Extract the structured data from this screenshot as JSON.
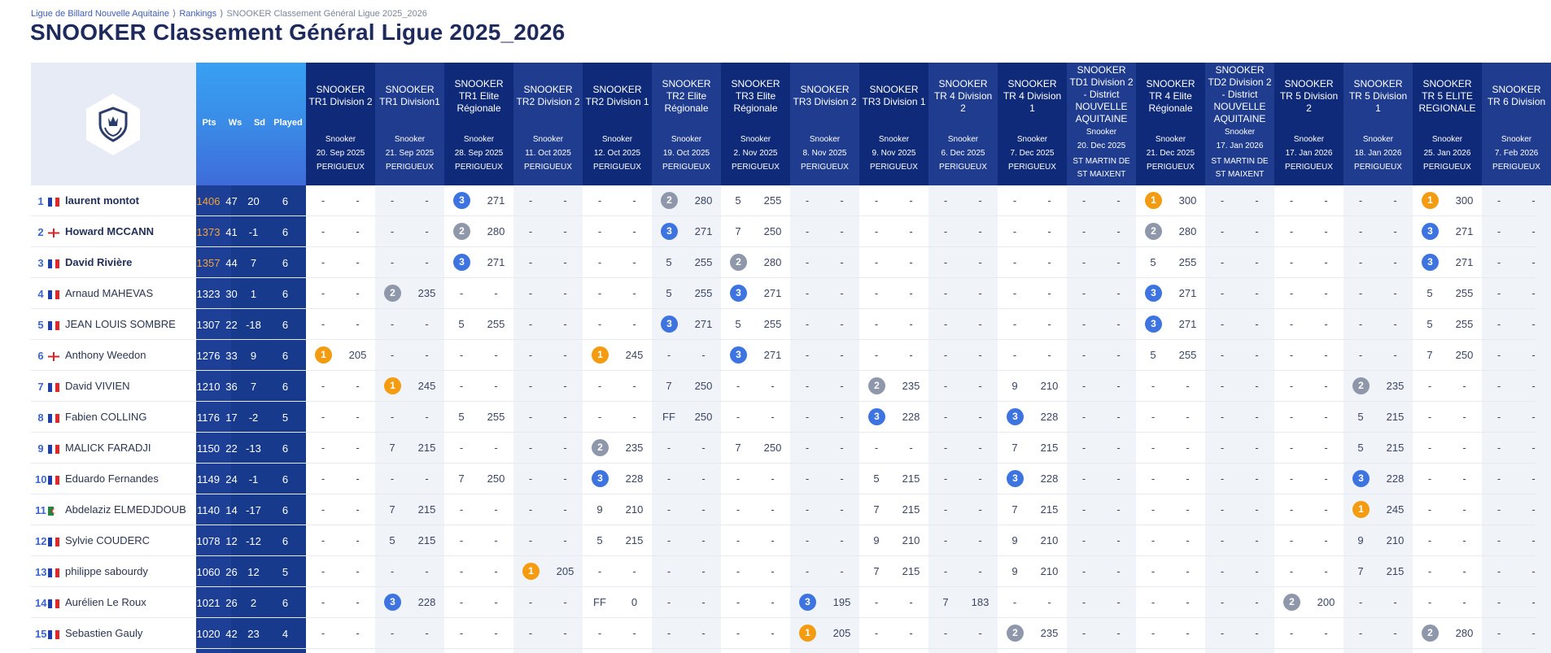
{
  "breadcrumb": {
    "items": [
      "Ligue de Billard Nouvelle Aquitaine",
      "Rankings",
      "SNOOKER Classement Général Ligue 2025_2026"
    ]
  },
  "page_title": "SNOOKER Classement Général Ligue 2025_2026",
  "columns": {
    "pts": "Pts",
    "ws": "Ws",
    "sd": "Sd",
    "played": "Played"
  },
  "colors": {
    "header_dark": "#0f2a78",
    "header_light": "#1f3c8f",
    "shade": "#f0f3f8",
    "rank_gold": "#f39c12",
    "rank_silver": "#8f97aa",
    "rank_bronze": "#3e74e0",
    "accent_blue": "#3b64d4"
  },
  "competitions": [
    {
      "name": "SNOOKER TR1 Division 2",
      "type": "Snooker",
      "date": "20. Sep 2025",
      "place": "PERIGUEUX"
    },
    {
      "name": "SNOOKER TR1 Division1",
      "type": "Snooker",
      "date": "21. Sep 2025",
      "place": "PERIGUEUX"
    },
    {
      "name": "SNOOKER TR1 Elite Régionale",
      "type": "Snooker",
      "date": "28. Sep 2025",
      "place": "PERIGUEUX"
    },
    {
      "name": "SNOOKER TR2 Division 2",
      "type": "Snooker",
      "date": "11. Oct 2025",
      "place": "PERIGUEUX"
    },
    {
      "name": "SNOOKER TR2 Division 1",
      "type": "Snooker",
      "date": "12. Oct 2025",
      "place": "PERIGUEUX"
    },
    {
      "name": "SNOOKER TR2 Elite Régionale",
      "type": "Snooker",
      "date": "19. Oct 2025",
      "place": "PERIGUEUX"
    },
    {
      "name": "SNOOKER TR3 Elite Régionale",
      "type": "Snooker",
      "date": "2. Nov 2025",
      "place": "PERIGUEUX"
    },
    {
      "name": "SNOOKER TR3 Division 2",
      "type": "Snooker",
      "date": "8. Nov 2025",
      "place": "PERIGUEUX"
    },
    {
      "name": "SNOOKER TR3 Division 1",
      "type": "Snooker",
      "date": "9. Nov 2025",
      "place": "PERIGUEUX"
    },
    {
      "name": "SNOOKER TR 4 Division 2",
      "type": "Snooker",
      "date": "6. Dec 2025",
      "place": "PERIGUEUX"
    },
    {
      "name": "SNOOKER TR 4 Division 1",
      "type": "Snooker",
      "date": "7. Dec 2025",
      "place": "PERIGUEUX"
    },
    {
      "name": "SNOOKER TD1 Division 2 - District NOUVELLE AQUITAINE",
      "type": "Snooker",
      "date": "20. Dec 2025",
      "place": "ST MARTIN DE ST MAIXENT"
    },
    {
      "name": "SNOOKER TR 4 Elite Régionale",
      "type": "Snooker",
      "date": "21. Dec 2025",
      "place": "PERIGUEUX"
    },
    {
      "name": "SNOOKER TD2 Division 2 - District NOUVELLE AQUITAINE",
      "type": "Snooker",
      "date": "17. Jan 2026",
      "place": "ST MARTIN DE ST MAIXENT"
    },
    {
      "name": "SNOOKER TR 5 Division 2",
      "type": "Snooker",
      "date": "17. Jan 2026",
      "place": "PERIGUEUX"
    },
    {
      "name": "SNOOKER TR 5 Division 1",
      "type": "Snooker",
      "date": "18. Jan 2026",
      "place": "PERIGUEUX"
    },
    {
      "name": "SNOOKER TR 5 ELITE REGIONALE",
      "type": "Snooker",
      "date": "25. Jan 2026",
      "place": "PERIGUEUX"
    },
    {
      "name": "SNOOKER TR 6 Division",
      "type": "Snooker",
      "date": "7. Feb 2026",
      "place": "PERIGUEUX"
    }
  ],
  "players": [
    {
      "rank": "1",
      "flag": "fr",
      "name": "laurent montot",
      "pts": "1406",
      "ws": "47",
      "sd": "20",
      "played": "6",
      "results": [
        [
          "-",
          "-"
        ],
        [
          "-",
          "-"
        ],
        [
          "3",
          "271"
        ],
        [
          "-",
          "-"
        ],
        [
          "-",
          "-"
        ],
        [
          "2",
          "280"
        ],
        [
          "5",
          "255"
        ],
        [
          "-",
          "-"
        ],
        [
          "-",
          "-"
        ],
        [
          "-",
          "-"
        ],
        [
          "-",
          "-"
        ],
        [
          "-",
          "-"
        ],
        [
          "1",
          "300"
        ],
        [
          "-",
          "-"
        ],
        [
          "-",
          "-"
        ],
        [
          "-",
          "-"
        ],
        [
          "1",
          "300"
        ],
        [
          "-",
          "-"
        ]
      ]
    },
    {
      "rank": "2",
      "flag": "en",
      "name": "Howard MCCANN",
      "pts": "1373",
      "ws": "41",
      "sd": "-1",
      "played": "6",
      "results": [
        [
          "-",
          "-"
        ],
        [
          "-",
          "-"
        ],
        [
          "2",
          "280"
        ],
        [
          "-",
          "-"
        ],
        [
          "-",
          "-"
        ],
        [
          "3",
          "271"
        ],
        [
          "7",
          "250"
        ],
        [
          "-",
          "-"
        ],
        [
          "-",
          "-"
        ],
        [
          "-",
          "-"
        ],
        [
          "-",
          "-"
        ],
        [
          "-",
          "-"
        ],
        [
          "2",
          "280"
        ],
        [
          "-",
          "-"
        ],
        [
          "-",
          "-"
        ],
        [
          "-",
          "-"
        ],
        [
          "3",
          "271"
        ],
        [
          "-",
          "-"
        ]
      ]
    },
    {
      "rank": "3",
      "flag": "fr",
      "name": "David Rivière",
      "pts": "1357",
      "ws": "44",
      "sd": "7",
      "played": "6",
      "results": [
        [
          "-",
          "-"
        ],
        [
          "-",
          "-"
        ],
        [
          "3",
          "271"
        ],
        [
          "-",
          "-"
        ],
        [
          "-",
          "-"
        ],
        [
          "5",
          "255"
        ],
        [
          "2",
          "280"
        ],
        [
          "-",
          "-"
        ],
        [
          "-",
          "-"
        ],
        [
          "-",
          "-"
        ],
        [
          "-",
          "-"
        ],
        [
          "-",
          "-"
        ],
        [
          "5",
          "255"
        ],
        [
          "-",
          "-"
        ],
        [
          "-",
          "-"
        ],
        [
          "-",
          "-"
        ],
        [
          "3",
          "271"
        ],
        [
          "-",
          "-"
        ]
      ]
    },
    {
      "rank": "4",
      "flag": "fr",
      "name": "Arnaud MAHEVAS",
      "pts": "1323",
      "ws": "30",
      "sd": "1",
      "played": "6",
      "results": [
        [
          "-",
          "-"
        ],
        [
          "2",
          "235"
        ],
        [
          "-",
          "-"
        ],
        [
          "-",
          "-"
        ],
        [
          "-",
          "-"
        ],
        [
          "5",
          "255"
        ],
        [
          "3",
          "271"
        ],
        [
          "-",
          "-"
        ],
        [
          "-",
          "-"
        ],
        [
          "-",
          "-"
        ],
        [
          "-",
          "-"
        ],
        [
          "-",
          "-"
        ],
        [
          "3",
          "271"
        ],
        [
          "-",
          "-"
        ],
        [
          "-",
          "-"
        ],
        [
          "-",
          "-"
        ],
        [
          "5",
          "255"
        ],
        [
          "-",
          "-"
        ]
      ]
    },
    {
      "rank": "5",
      "flag": "fr",
      "name": "JEAN LOUIS SOMBRE",
      "pts": "1307",
      "ws": "22",
      "sd": "-18",
      "played": "6",
      "results": [
        [
          "-",
          "-"
        ],
        [
          "-",
          "-"
        ],
        [
          "5",
          "255"
        ],
        [
          "-",
          "-"
        ],
        [
          "-",
          "-"
        ],
        [
          "3",
          "271"
        ],
        [
          "5",
          "255"
        ],
        [
          "-",
          "-"
        ],
        [
          "-",
          "-"
        ],
        [
          "-",
          "-"
        ],
        [
          "-",
          "-"
        ],
        [
          "-",
          "-"
        ],
        [
          "3",
          "271"
        ],
        [
          "-",
          "-"
        ],
        [
          "-",
          "-"
        ],
        [
          "-",
          "-"
        ],
        [
          "5",
          "255"
        ],
        [
          "-",
          "-"
        ]
      ]
    },
    {
      "rank": "6",
      "flag": "en",
      "name": "Anthony Weedon",
      "pts": "1276",
      "ws": "33",
      "sd": "9",
      "played": "6",
      "results": [
        [
          "1",
          "205"
        ],
        [
          "-",
          "-"
        ],
        [
          "-",
          "-"
        ],
        [
          "-",
          "-"
        ],
        [
          "1",
          "245"
        ],
        [
          "-",
          "-"
        ],
        [
          "3",
          "271"
        ],
        [
          "-",
          "-"
        ],
        [
          "-",
          "-"
        ],
        [
          "-",
          "-"
        ],
        [
          "-",
          "-"
        ],
        [
          "-",
          "-"
        ],
        [
          "5",
          "255"
        ],
        [
          "-",
          "-"
        ],
        [
          "-",
          "-"
        ],
        [
          "-",
          "-"
        ],
        [
          "7",
          "250"
        ],
        [
          "-",
          "-"
        ]
      ]
    },
    {
      "rank": "7",
      "flag": "fr",
      "name": "David VIVIEN",
      "pts": "1210",
      "ws": "36",
      "sd": "7",
      "played": "6",
      "results": [
        [
          "-",
          "-"
        ],
        [
          "1",
          "245"
        ],
        [
          "-",
          "-"
        ],
        [
          "-",
          "-"
        ],
        [
          "-",
          "-"
        ],
        [
          "7",
          "250"
        ],
        [
          "-",
          "-"
        ],
        [
          "-",
          "-"
        ],
        [
          "2",
          "235"
        ],
        [
          "-",
          "-"
        ],
        [
          "9",
          "210"
        ],
        [
          "-",
          "-"
        ],
        [
          "-",
          "-"
        ],
        [
          "-",
          "-"
        ],
        [
          "-",
          "-"
        ],
        [
          "2",
          "235"
        ],
        [
          "-",
          "-"
        ],
        [
          "-",
          "-"
        ]
      ]
    },
    {
      "rank": "8",
      "flag": "fr",
      "name": "Fabien COLLING",
      "pts": "1176",
      "ws": "17",
      "sd": "-2",
      "played": "5",
      "results": [
        [
          "-",
          "-"
        ],
        [
          "-",
          "-"
        ],
        [
          "5",
          "255"
        ],
        [
          "-",
          "-"
        ],
        [
          "-",
          "-"
        ],
        [
          "FF",
          "250"
        ],
        [
          "-",
          "-"
        ],
        [
          "-",
          "-"
        ],
        [
          "3",
          "228"
        ],
        [
          "-",
          "-"
        ],
        [
          "3",
          "228"
        ],
        [
          "-",
          "-"
        ],
        [
          "-",
          "-"
        ],
        [
          "-",
          "-"
        ],
        [
          "-",
          "-"
        ],
        [
          "5",
          "215"
        ],
        [
          "-",
          "-"
        ],
        [
          "-",
          "-"
        ]
      ]
    },
    {
      "rank": "9",
      "flag": "fr",
      "name": "MALICK FARADJI",
      "pts": "1150",
      "ws": "22",
      "sd": "-13",
      "played": "6",
      "results": [
        [
          "-",
          "-"
        ],
        [
          "7",
          "215"
        ],
        [
          "-",
          "-"
        ],
        [
          "-",
          "-"
        ],
        [
          "2",
          "235"
        ],
        [
          "-",
          "-"
        ],
        [
          "7",
          "250"
        ],
        [
          "-",
          "-"
        ],
        [
          "-",
          "-"
        ],
        [
          "-",
          "-"
        ],
        [
          "7",
          "215"
        ],
        [
          "-",
          "-"
        ],
        [
          "-",
          "-"
        ],
        [
          "-",
          "-"
        ],
        [
          "-",
          "-"
        ],
        [
          "5",
          "215"
        ],
        [
          "-",
          "-"
        ],
        [
          "-",
          "-"
        ]
      ]
    },
    {
      "rank": "10",
      "flag": "fr",
      "name": "Eduardo Fernandes",
      "pts": "1149",
      "ws": "24",
      "sd": "-1",
      "played": "6",
      "results": [
        [
          "-",
          "-"
        ],
        [
          "-",
          "-"
        ],
        [
          "7",
          "250"
        ],
        [
          "-",
          "-"
        ],
        [
          "3",
          "228"
        ],
        [
          "-",
          "-"
        ],
        [
          "-",
          "-"
        ],
        [
          "-",
          "-"
        ],
        [
          "5",
          "215"
        ],
        [
          "-",
          "-"
        ],
        [
          "3",
          "228"
        ],
        [
          "-",
          "-"
        ],
        [
          "-",
          "-"
        ],
        [
          "-",
          "-"
        ],
        [
          "-",
          "-"
        ],
        [
          "3",
          "228"
        ],
        [
          "-",
          "-"
        ],
        [
          "-",
          "-"
        ]
      ]
    },
    {
      "rank": "11",
      "flag": "dz",
      "name": "Abdelaziz ELMEDJDOUB",
      "pts": "1140",
      "ws": "14",
      "sd": "-17",
      "played": "6",
      "results": [
        [
          "-",
          "-"
        ],
        [
          "7",
          "215"
        ],
        [
          "-",
          "-"
        ],
        [
          "-",
          "-"
        ],
        [
          "9",
          "210"
        ],
        [
          "-",
          "-"
        ],
        [
          "-",
          "-"
        ],
        [
          "-",
          "-"
        ],
        [
          "7",
          "215"
        ],
        [
          "-",
          "-"
        ],
        [
          "7",
          "215"
        ],
        [
          "-",
          "-"
        ],
        [
          "-",
          "-"
        ],
        [
          "-",
          "-"
        ],
        [
          "-",
          "-"
        ],
        [
          "1",
          "245"
        ],
        [
          "-",
          "-"
        ],
        [
          "-",
          "-"
        ]
      ]
    },
    {
      "rank": "12",
      "flag": "fr",
      "name": "Sylvie COUDERC",
      "pts": "1078",
      "ws": "12",
      "sd": "-12",
      "played": "6",
      "results": [
        [
          "-",
          "-"
        ],
        [
          "5",
          "215"
        ],
        [
          "-",
          "-"
        ],
        [
          "-",
          "-"
        ],
        [
          "5",
          "215"
        ],
        [
          "-",
          "-"
        ],
        [
          "-",
          "-"
        ],
        [
          "-",
          "-"
        ],
        [
          "9",
          "210"
        ],
        [
          "-",
          "-"
        ],
        [
          "9",
          "210"
        ],
        [
          "-",
          "-"
        ],
        [
          "-",
          "-"
        ],
        [
          "-",
          "-"
        ],
        [
          "-",
          "-"
        ],
        [
          "9",
          "210"
        ],
        [
          "-",
          "-"
        ],
        [
          "-",
          "-"
        ]
      ]
    },
    {
      "rank": "13",
      "flag": "fr",
      "name": "philippe sabourdy",
      "pts": "1060",
      "ws": "26",
      "sd": "12",
      "played": "5",
      "results": [
        [
          "-",
          "-"
        ],
        [
          "-",
          "-"
        ],
        [
          "-",
          "-"
        ],
        [
          "1",
          "205"
        ],
        [
          "-",
          "-"
        ],
        [
          "-",
          "-"
        ],
        [
          "-",
          "-"
        ],
        [
          "-",
          "-"
        ],
        [
          "7",
          "215"
        ],
        [
          "-",
          "-"
        ],
        [
          "9",
          "210"
        ],
        [
          "-",
          "-"
        ],
        [
          "-",
          "-"
        ],
        [
          "-",
          "-"
        ],
        [
          "-",
          "-"
        ],
        [
          "7",
          "215"
        ],
        [
          "-",
          "-"
        ],
        [
          "-",
          "-"
        ]
      ]
    },
    {
      "rank": "14",
      "flag": "fr",
      "name": "Aurélien Le Roux",
      "pts": "1021",
      "ws": "26",
      "sd": "2",
      "played": "6",
      "results": [
        [
          "-",
          "-"
        ],
        [
          "3",
          "228"
        ],
        [
          "-",
          "-"
        ],
        [
          "-",
          "-"
        ],
        [
          "FF",
          "0"
        ],
        [
          "-",
          "-"
        ],
        [
          "-",
          "-"
        ],
        [
          "3",
          "195"
        ],
        [
          "-",
          "-"
        ],
        [
          "7",
          "183"
        ],
        [
          "-",
          "-"
        ],
        [
          "-",
          "-"
        ],
        [
          "-",
          "-"
        ],
        [
          "-",
          "-"
        ],
        [
          "2",
          "200"
        ],
        [
          "-",
          "-"
        ],
        [
          "-",
          "-"
        ],
        [
          "-",
          "-"
        ]
      ]
    },
    {
      "rank": "15",
      "flag": "fr",
      "name": "Sebastien Gauly",
      "pts": "1020",
      "ws": "42",
      "sd": "23",
      "played": "4",
      "results": [
        [
          "-",
          "-"
        ],
        [
          "-",
          "-"
        ],
        [
          "-",
          "-"
        ],
        [
          "-",
          "-"
        ],
        [
          "-",
          "-"
        ],
        [
          "-",
          "-"
        ],
        [
          "-",
          "-"
        ],
        [
          "1",
          "205"
        ],
        [
          "-",
          "-"
        ],
        [
          "-",
          "-"
        ],
        [
          "2",
          "235"
        ],
        [
          "-",
          "-"
        ],
        [
          "-",
          "-"
        ],
        [
          "-",
          "-"
        ],
        [
          "-",
          "-"
        ],
        [
          "-",
          "-"
        ],
        [
          "2",
          "280"
        ],
        [
          "-",
          "-"
        ]
      ]
    }
  ]
}
